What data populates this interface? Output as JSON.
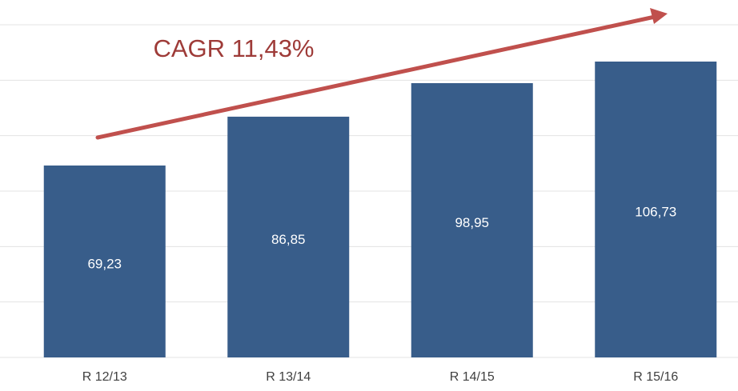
{
  "chart_data": {
    "type": "bar",
    "annotation": "CAGR 11,43%",
    "categories": [
      "R 12/13",
      "R 13/14",
      "R 14/15",
      "R 15/16"
    ],
    "values": [
      69.23,
      86.85,
      98.95,
      106.73
    ],
    "value_labels": [
      "69,23",
      "86,85",
      "98,95",
      "106,73"
    ],
    "color": "#385d8a",
    "ylim": [
      0,
      120
    ],
    "yticks": [
      0,
      20,
      40,
      60,
      80,
      100,
      120
    ],
    "grid": true
  }
}
